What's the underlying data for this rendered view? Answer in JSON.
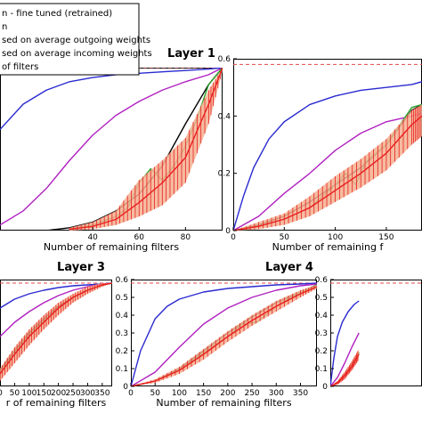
{
  "colors": {
    "reference": "#e04848",
    "blue": "#2a2ad0",
    "magenta": "#b020c0",
    "black": "#000000",
    "green": "#2aa02a",
    "red": "#e82020",
    "band": "#f5b090"
  },
  "legend": {
    "entries": [
      "n - fine tuned (retrained)",
      "n",
      "sed on average outgoing weights",
      "sed on average incoming weights",
      "of filters"
    ]
  },
  "chart_data": [
    {
      "type": "line",
      "title": "Layer 1",
      "xlabel": "Number of remaining filters",
      "ylabel": "",
      "xlim": [
        0,
        96
      ],
      "ylim": [
        0,
        0.58
      ],
      "xticks": [
        40,
        60,
        80
      ],
      "yticks": [],
      "reference_y": 0.58,
      "series": [
        {
          "color_key": "blue",
          "x": [
            0,
            10,
            20,
            30,
            40,
            50,
            60,
            70,
            80,
            90,
            96
          ],
          "y": [
            0.36,
            0.45,
            0.5,
            0.53,
            0.545,
            0.555,
            0.56,
            0.565,
            0.57,
            0.575,
            0.58
          ]
        },
        {
          "color_key": "magenta",
          "x": [
            0,
            10,
            20,
            30,
            40,
            50,
            60,
            70,
            80,
            90,
            96
          ],
          "y": [
            0.02,
            0.07,
            0.15,
            0.25,
            0.34,
            0.41,
            0.46,
            0.5,
            0.53,
            0.555,
            0.58
          ]
        },
        {
          "color_key": "black",
          "x": [
            20,
            30,
            40,
            50,
            60,
            70,
            80,
            90,
            96
          ],
          "y": [
            0,
            0.01,
            0.03,
            0.07,
            0.13,
            0.23,
            0.38,
            0.52,
            0.58
          ]
        },
        {
          "color_key": "green",
          "x": [
            30,
            40,
            50,
            55,
            60,
            65,
            70,
            75,
            80,
            85,
            90,
            96
          ],
          "y": [
            0.005,
            0.02,
            0.05,
            0.08,
            0.17,
            0.22,
            0.18,
            0.23,
            0.3,
            0.4,
            0.52,
            0.58
          ]
        },
        {
          "color_key": "red",
          "band": true,
          "x": [
            30,
            40,
            50,
            60,
            70,
            80,
            90,
            96
          ],
          "y": [
            0.005,
            0.015,
            0.04,
            0.1,
            0.17,
            0.26,
            0.45,
            0.58
          ],
          "lo": [
            0,
            0.005,
            0.02,
            0.05,
            0.09,
            0.17,
            0.38,
            0.57
          ],
          "hi": [
            0.01,
            0.03,
            0.07,
            0.18,
            0.25,
            0.33,
            0.5,
            0.58
          ]
        }
      ]
    },
    {
      "type": "line",
      "title": "",
      "xlabel": "Number of remaining f",
      "ylabel": "",
      "xlim": [
        0,
        185
      ],
      "ylim": [
        0,
        0.6
      ],
      "xticks": [
        0,
        50,
        100,
        150
      ],
      "yticks": [
        0,
        0.2,
        0.4,
        0.6
      ],
      "reference_y": 0.58,
      "series": [
        {
          "color_key": "blue",
          "x": [
            0,
            10,
            20,
            35,
            50,
            75,
            100,
            125,
            150,
            175,
            185
          ],
          "y": [
            0,
            0.12,
            0.22,
            0.32,
            0.38,
            0.44,
            0.47,
            0.49,
            0.5,
            0.51,
            0.52
          ]
        },
        {
          "color_key": "magenta",
          "x": [
            0,
            25,
            50,
            75,
            100,
            125,
            150,
            175,
            185
          ],
          "y": [
            0,
            0.05,
            0.13,
            0.2,
            0.28,
            0.34,
            0.38,
            0.4,
            0.41
          ]
        },
        {
          "color_key": "black",
          "x": [
            0,
            25,
            50,
            75,
            100,
            125,
            150,
            175,
            185
          ],
          "y": [
            0,
            0.02,
            0.05,
            0.1,
            0.16,
            0.22,
            0.3,
            0.42,
            0.44
          ]
        },
        {
          "color_key": "green",
          "x": [
            0,
            25,
            50,
            75,
            100,
            110,
            120,
            130,
            150,
            175,
            185
          ],
          "y": [
            0,
            0.015,
            0.04,
            0.08,
            0.16,
            0.2,
            0.16,
            0.24,
            0.3,
            0.43,
            0.44
          ]
        },
        {
          "color_key": "red",
          "band": true,
          "x": [
            0,
            25,
            50,
            75,
            100,
            125,
            150,
            175,
            185
          ],
          "y": [
            0,
            0.015,
            0.04,
            0.08,
            0.14,
            0.2,
            0.27,
            0.37,
            0.4
          ],
          "lo": [
            0,
            0.005,
            0.02,
            0.05,
            0.1,
            0.15,
            0.21,
            0.3,
            0.33
          ],
          "hi": [
            0,
            0.03,
            0.06,
            0.12,
            0.19,
            0.25,
            0.32,
            0.42,
            0.44
          ]
        }
      ]
    },
    {
      "type": "line",
      "title": "Layer 3",
      "xlabel": "r of remaining filters",
      "ylabel": "",
      "xlim": [
        0,
        384
      ],
      "ylim": [
        0,
        0.6
      ],
      "xticks": [
        0,
        50,
        100,
        150,
        200,
        250,
        300,
        350
      ],
      "yticks": [],
      "reference_y": 0.58,
      "series": [
        {
          "color_key": "blue",
          "x": [
            0,
            50,
            100,
            150,
            200,
            250,
            300,
            350,
            384
          ],
          "y": [
            0.44,
            0.49,
            0.52,
            0.54,
            0.555,
            0.565,
            0.57,
            0.575,
            0.58
          ]
        },
        {
          "color_key": "magenta",
          "x": [
            0,
            50,
            100,
            150,
            200,
            250,
            300,
            350,
            384
          ],
          "y": [
            0.28,
            0.36,
            0.42,
            0.47,
            0.51,
            0.54,
            0.56,
            0.575,
            0.58
          ]
        },
        {
          "color_key": "black",
          "x": [
            0,
            50,
            100,
            150,
            200,
            250,
            300,
            350,
            384
          ],
          "y": [
            0.09,
            0.2,
            0.3,
            0.38,
            0.45,
            0.5,
            0.54,
            0.57,
            0.58
          ]
        },
        {
          "color_key": "green",
          "x": [
            0,
            50,
            100,
            150,
            200,
            250,
            300,
            350,
            384
          ],
          "y": [
            0.08,
            0.19,
            0.29,
            0.37,
            0.44,
            0.5,
            0.54,
            0.57,
            0.58
          ]
        },
        {
          "color_key": "red",
          "band": true,
          "x": [
            0,
            50,
            100,
            150,
            200,
            250,
            300,
            350,
            384
          ],
          "y": [
            0.07,
            0.18,
            0.28,
            0.36,
            0.44,
            0.5,
            0.54,
            0.57,
            0.58
          ],
          "lo": [
            0.03,
            0.13,
            0.23,
            0.32,
            0.4,
            0.47,
            0.52,
            0.56,
            0.58
          ],
          "hi": [
            0.1,
            0.22,
            0.32,
            0.4,
            0.47,
            0.52,
            0.56,
            0.58,
            0.58
          ]
        }
      ]
    },
    {
      "type": "line",
      "title": "Layer 4",
      "xlabel": "Number of remaining filters",
      "ylabel": "",
      "xlim": [
        0,
        384
      ],
      "ylim": [
        0,
        0.6
      ],
      "xticks": [
        0,
        50,
        100,
        150,
        200,
        250,
        300,
        350
      ],
      "yticks": [
        0,
        0.1,
        0.2,
        0.3,
        0.4,
        0.5,
        0.6
      ],
      "reference_y": 0.58,
      "series": [
        {
          "color_key": "blue",
          "x": [
            0,
            20,
            50,
            75,
            100,
            150,
            200,
            250,
            300,
            350,
            384
          ],
          "y": [
            0,
            0.2,
            0.38,
            0.45,
            0.49,
            0.53,
            0.55,
            0.56,
            0.57,
            0.575,
            0.58
          ]
        },
        {
          "color_key": "magenta",
          "x": [
            0,
            50,
            100,
            150,
            200,
            250,
            300,
            350,
            384
          ],
          "y": [
            0,
            0.08,
            0.22,
            0.35,
            0.44,
            0.5,
            0.54,
            0.565,
            0.575
          ]
        },
        {
          "color_key": "black",
          "x": [
            0,
            50,
            100,
            150,
            200,
            250,
            300,
            350,
            384
          ],
          "y": [
            0,
            0.03,
            0.1,
            0.2,
            0.3,
            0.39,
            0.47,
            0.53,
            0.57
          ]
        },
        {
          "color_key": "green",
          "x": [
            0,
            50,
            100,
            150,
            200,
            230,
            260,
            300,
            350,
            384
          ],
          "y": [
            0,
            0.03,
            0.09,
            0.19,
            0.28,
            0.35,
            0.36,
            0.45,
            0.53,
            0.57
          ]
        },
        {
          "color_key": "red",
          "band": true,
          "x": [
            0,
            50,
            100,
            150,
            200,
            250,
            300,
            350,
            384
          ],
          "y": [
            0,
            0.03,
            0.09,
            0.18,
            0.28,
            0.37,
            0.45,
            0.52,
            0.56
          ],
          "lo": [
            0,
            0.02,
            0.07,
            0.15,
            0.25,
            0.34,
            0.42,
            0.5,
            0.55
          ],
          "hi": [
            0,
            0.04,
            0.11,
            0.21,
            0.31,
            0.4,
            0.48,
            0.54,
            0.57
          ]
        }
      ]
    },
    {
      "type": "line",
      "title": "",
      "xlabel": "",
      "ylabel": "",
      "xlim": [
        0,
        384
      ],
      "ylim": [
        0,
        0.6
      ],
      "xticks": [],
      "yticks": [
        0,
        0.1,
        0.2,
        0.3,
        0.4,
        0.5,
        0.6
      ],
      "reference_y": 0.58,
      "series": [
        {
          "color_key": "blue",
          "x": [
            0,
            15,
            30,
            50,
            75,
            100,
            120
          ],
          "y": [
            0,
            0.16,
            0.28,
            0.36,
            0.42,
            0.46,
            0.48
          ]
        },
        {
          "color_key": "magenta",
          "x": [
            0,
            30,
            60,
            90,
            120
          ],
          "y": [
            0,
            0.05,
            0.13,
            0.22,
            0.3
          ]
        },
        {
          "color_key": "black",
          "x": [
            0,
            30,
            60,
            90,
            120
          ],
          "y": [
            0,
            0.02,
            0.06,
            0.12,
            0.19
          ]
        },
        {
          "color_key": "green",
          "x": [
            0,
            30,
            60,
            90,
            120
          ],
          "y": [
            0,
            0.02,
            0.06,
            0.12,
            0.19
          ]
        },
        {
          "color_key": "red",
          "band": true,
          "x": [
            0,
            30,
            60,
            90,
            120
          ],
          "y": [
            0,
            0.02,
            0.06,
            0.11,
            0.18
          ],
          "lo": [
            0,
            0.01,
            0.04,
            0.09,
            0.15
          ],
          "hi": [
            0,
            0.03,
            0.08,
            0.14,
            0.21
          ]
        }
      ]
    }
  ]
}
